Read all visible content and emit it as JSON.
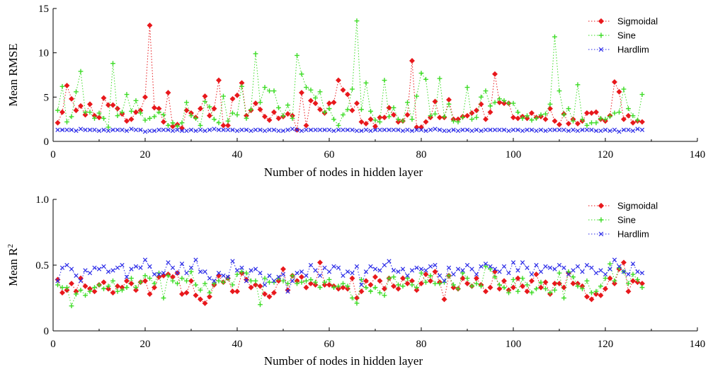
{
  "chart_data": [
    {
      "type": "line",
      "xlabel": "Number of nodes in hidden layer",
      "ylabel": "Mean RMSE",
      "xlim": [
        0,
        140
      ],
      "ylim": [
        0,
        15
      ],
      "xticks": [
        0,
        20,
        40,
        60,
        80,
        100,
        120,
        140
      ],
      "yticks": [
        0,
        5,
        10,
        15
      ],
      "xtick_labels": [
        "0",
        "20",
        "40",
        "60",
        "80",
        "100",
        "120",
        "140"
      ],
      "ytick_labels": [
        "0",
        "5",
        "10",
        "15"
      ],
      "grid": false,
      "legend_position": "top-right",
      "x": [
        1,
        2,
        3,
        4,
        5,
        6,
        7,
        8,
        9,
        10,
        11,
        12,
        13,
        14,
        15,
        16,
        17,
        18,
        19,
        20,
        21,
        22,
        23,
        24,
        25,
        26,
        27,
        28,
        29,
        30,
        31,
        32,
        33,
        34,
        35,
        36,
        37,
        38,
        39,
        40,
        41,
        42,
        43,
        44,
        45,
        46,
        47,
        48,
        49,
        50,
        51,
        52,
        53,
        54,
        55,
        56,
        57,
        58,
        59,
        60,
        61,
        62,
        63,
        64,
        65,
        66,
        67,
        68,
        69,
        70,
        71,
        72,
        73,
        74,
        75,
        76,
        77,
        78,
        79,
        80,
        81,
        82,
        83,
        84,
        85,
        86,
        87,
        88,
        89,
        90,
        91,
        92,
        93,
        94,
        95,
        96,
        97,
        98,
        99,
        100,
        101,
        102,
        103,
        104,
        105,
        106,
        107,
        108,
        109,
        110,
        111,
        112,
        113,
        114,
        115,
        116,
        117,
        118,
        119,
        120,
        121,
        122,
        123,
        124,
        125,
        126,
        127,
        128
      ],
      "series": [
        {
          "name": "Sigmoidal",
          "color": "#e8181c",
          "marker": "diamond",
          "values": [
            2.1,
            3.3,
            6.3,
            4.8,
            3.5,
            4.0,
            3.0,
            4.2,
            2.9,
            2.7,
            4.9,
            4.1,
            4.1,
            3.7,
            3.1,
            2.3,
            2.5,
            3.3,
            3.5,
            5.0,
            13.1,
            3.8,
            3.7,
            2.2,
            5.5,
            1.7,
            1.9,
            1.5,
            3.5,
            3.2,
            2.7,
            3.7,
            5.1,
            2.9,
            3.7,
            6.9,
            1.8,
            1.8,
            4.8,
            5.2,
            6.6,
            2.9,
            3.5,
            4.3,
            3.6,
            2.8,
            2.4,
            3.3,
            2.6,
            2.8,
            3.1,
            2.9,
            1.3,
            5.5,
            1.8,
            4.6,
            4.3,
            3.6,
            3.2,
            4.3,
            4.4,
            6.9,
            5.8,
            5.3,
            3.5,
            4.3,
            2.2,
            2.0,
            2.5,
            1.7,
            2.7,
            2.7,
            3.8,
            3.0,
            2.2,
            2.3,
            3.0,
            9.1,
            1.6,
            1.6,
            2.2,
            2.7,
            4.5,
            2.7,
            2.7,
            4.7,
            2.5,
            2.5,
            2.8,
            2.9,
            3.2,
            3.5,
            4.2,
            2.5,
            3.3,
            7.6,
            4.4,
            4.3,
            4.3,
            2.7,
            2.6,
            2.8,
            2.6,
            3.2,
            2.7,
            2.8,
            2.5,
            3.7,
            2.3,
            1.9,
            3.1,
            2.0,
            2.5,
            2.0,
            2.3,
            3.2,
            3.2,
            3.3,
            2.5,
            2.3,
            2.9,
            6.7,
            5.6,
            2.5,
            2.9,
            2.1,
            2.3,
            2.2
          ]
        },
        {
          "name": "Sine",
          "color": "#3ddc26",
          "marker": "plus",
          "values": [
            3.5,
            6.2,
            2.2,
            2.8,
            5.6,
            7.9,
            3.3,
            3.3,
            2.6,
            3.2,
            2.6,
            1.6,
            8.8,
            2.9,
            3.3,
            5.3,
            3.4,
            4.6,
            3.2,
            2.4,
            2.6,
            2.8,
            3.3,
            3.0,
            1.8,
            2.1,
            1.7,
            2.1,
            4.4,
            2.9,
            2.6,
            1.8,
            4.5,
            3.9,
            2.5,
            2.1,
            5.1,
            2.3,
            3.2,
            3.0,
            6.2,
            2.6,
            3.6,
            9.9,
            4.4,
            6.1,
            5.7,
            5.7,
            3.8,
            2.9,
            4.1,
            2.6,
            9.7,
            7.6,
            6.1,
            5.8,
            4.9,
            5.6,
            3.3,
            3.7,
            2.5,
            1.8,
            3.0,
            3.6,
            5.9,
            13.6,
            3.6,
            6.6,
            3.4,
            2.4,
            2.2,
            6.9,
            2.8,
            3.8,
            2.5,
            2.3,
            4.4,
            2.5,
            5.1,
            7.7,
            7.0,
            2.9,
            3.1,
            7.1,
            2.8,
            4.2,
            2.3,
            2.2,
            2.7,
            6.1,
            2.5,
            2.7,
            5.0,
            5.7,
            4.0,
            4.4,
            4.8,
            4.6,
            4.3,
            4.3,
            3.3,
            2.6,
            2.9,
            2.4,
            2.6,
            3.0,
            3.1,
            4.2,
            11.8,
            5.7,
            3.0,
            3.7,
            2.3,
            6.4,
            2.5,
            1.8,
            2.1,
            2.1,
            2.6,
            2.5,
            2.8,
            3.2,
            3.3,
            5.9,
            3.7,
            2.9,
            2.4,
            5.3
          ]
        },
        {
          "name": "Hardlim",
          "color": "#2c2ce8",
          "marker": "x",
          "values": [
            1.3,
            1.3,
            1.3,
            1.3,
            1.2,
            1.4,
            1.3,
            1.3,
            1.3,
            1.2,
            1.3,
            1.2,
            1.3,
            1.3,
            1.3,
            1.2,
            1.4,
            1.3,
            1.3,
            1.1,
            1.2,
            1.2,
            1.3,
            1.3,
            1.3,
            1.2,
            1.3,
            1.2,
            1.2,
            1.3,
            1.2,
            1.3,
            1.2,
            1.3,
            1.4,
            1.3,
            1.3,
            1.3,
            1.3,
            1.2,
            1.3,
            1.3,
            1.2,
            1.3,
            1.3,
            1.2,
            1.3,
            1.3,
            1.2,
            1.2,
            1.3,
            1.4,
            1.3,
            1.2,
            1.3,
            1.3,
            1.3,
            1.3,
            1.3,
            1.3,
            1.2,
            1.3,
            1.3,
            1.3,
            1.3,
            1.2,
            1.2,
            1.3,
            1.2,
            1.3,
            1.3,
            1.3,
            1.3,
            1.3,
            1.3,
            1.2,
            1.3,
            1.2,
            1.3,
            1.3,
            1.2,
            1.3,
            1.4,
            1.3,
            1.2,
            1.2,
            1.3,
            1.2,
            1.3,
            1.3,
            1.2,
            1.3,
            1.2,
            1.3,
            1.3,
            1.3,
            1.3,
            1.3,
            1.2,
            1.3,
            1.3,
            1.2,
            1.3,
            1.3,
            1.2,
            1.3,
            1.2,
            1.3,
            1.3,
            1.3,
            1.3,
            1.2,
            1.3,
            1.2,
            1.3,
            1.3,
            1.3,
            1.2,
            1.2,
            1.3,
            1.2,
            1.3,
            1.1,
            1.3,
            1.3,
            1.2,
            1.4,
            1.3
          ]
        }
      ]
    },
    {
      "type": "line",
      "xlabel": "Number of nodes in hidden layer",
      "ylabel": "Mean R",
      "ylabel_superscript": "2",
      "xlim": [
        0,
        140
      ],
      "ylim": [
        0,
        1.0
      ],
      "xticks": [
        0,
        20,
        40,
        60,
        80,
        100,
        120,
        140
      ],
      "yticks": [
        0,
        0.5,
        1.0
      ],
      "xtick_labels": [
        "0",
        "20",
        "40",
        "60",
        "80",
        "100",
        "120",
        "140"
      ],
      "ytick_labels": [
        "0",
        "0.5",
        "1.0"
      ],
      "grid": false,
      "legend_position": "top-right",
      "x": [
        1,
        2,
        3,
        4,
        5,
        6,
        7,
        8,
        9,
        10,
        11,
        12,
        13,
        14,
        15,
        16,
        17,
        18,
        19,
        20,
        21,
        22,
        23,
        24,
        25,
        26,
        27,
        28,
        29,
        30,
        31,
        32,
        33,
        34,
        35,
        36,
        37,
        38,
        39,
        40,
        41,
        42,
        43,
        44,
        45,
        46,
        47,
        48,
        49,
        50,
        51,
        52,
        53,
        54,
        55,
        56,
        57,
        58,
        59,
        60,
        61,
        62,
        63,
        64,
        65,
        66,
        67,
        68,
        69,
        70,
        71,
        72,
        73,
        74,
        75,
        76,
        77,
        78,
        79,
        80,
        81,
        82,
        83,
        84,
        85,
        86,
        87,
        88,
        89,
        90,
        91,
        92,
        93,
        94,
        95,
        96,
        97,
        98,
        99,
        100,
        101,
        102,
        103,
        104,
        105,
        106,
        107,
        108,
        109,
        110,
        111,
        112,
        113,
        114,
        115,
        116,
        117,
        118,
        119,
        120,
        121,
        122,
        123,
        124,
        125,
        126,
        127,
        128
      ],
      "series": [
        {
          "name": "Sigmoidal",
          "color": "#e8181c",
          "marker": "diamond",
          "values": [
            0.39,
            0.29,
            0.31,
            0.36,
            0.3,
            0.4,
            0.34,
            0.32,
            0.3,
            0.35,
            0.37,
            0.32,
            0.29,
            0.34,
            0.33,
            0.38,
            0.36,
            0.31,
            0.37,
            0.38,
            0.28,
            0.33,
            0.41,
            0.42,
            0.43,
            0.41,
            0.44,
            0.28,
            0.29,
            0.38,
            0.27,
            0.24,
            0.21,
            0.26,
            0.35,
            0.42,
            0.37,
            0.4,
            0.3,
            0.3,
            0.44,
            0.39,
            0.33,
            0.35,
            0.34,
            0.28,
            0.26,
            0.29,
            0.38,
            0.47,
            0.31,
            0.42,
            0.38,
            0.41,
            0.33,
            0.36,
            0.35,
            0.52,
            0.35,
            0.35,
            0.34,
            0.32,
            0.33,
            0.32,
            0.4,
            0.25,
            0.3,
            0.38,
            0.35,
            0.41,
            0.38,
            0.32,
            0.4,
            0.34,
            0.32,
            0.4,
            0.36,
            0.38,
            0.31,
            0.36,
            0.43,
            0.38,
            0.45,
            0.37,
            0.24,
            0.42,
            0.33,
            0.32,
            0.4,
            0.36,
            0.34,
            0.4,
            0.35,
            0.3,
            0.33,
            0.45,
            0.32,
            0.38,
            0.31,
            0.33,
            0.4,
            0.34,
            0.3,
            0.38,
            0.43,
            0.33,
            0.37,
            0.28,
            0.36,
            0.36,
            0.33,
            0.44,
            0.36,
            0.36,
            0.34,
            0.26,
            0.24,
            0.28,
            0.27,
            0.32,
            0.4,
            0.36,
            0.47,
            0.52,
            0.3,
            0.38,
            0.37,
            0.36
          ]
        },
        {
          "name": "Sine",
          "color": "#3ddc26",
          "marker": "plus",
          "values": [
            0.35,
            0.33,
            0.33,
            0.19,
            0.28,
            0.31,
            0.27,
            0.3,
            0.33,
            0.35,
            0.32,
            0.34,
            0.38,
            0.3,
            0.31,
            0.33,
            0.4,
            0.33,
            0.37,
            0.42,
            0.4,
            0.36,
            0.44,
            0.25,
            0.42,
            0.38,
            0.36,
            0.4,
            0.38,
            0.45,
            0.35,
            0.31,
            0.36,
            0.29,
            0.36,
            0.38,
            0.37,
            0.4,
            0.35,
            0.43,
            0.45,
            0.44,
            0.38,
            0.38,
            0.2,
            0.4,
            0.37,
            0.37,
            0.4,
            0.38,
            0.36,
            0.42,
            0.36,
            0.37,
            0.38,
            0.39,
            0.37,
            0.33,
            0.37,
            0.39,
            0.33,
            0.34,
            0.36,
            0.34,
            0.25,
            0.21,
            0.39,
            0.33,
            0.3,
            0.33,
            0.29,
            0.27,
            0.4,
            0.41,
            0.35,
            0.34,
            0.4,
            0.35,
            0.33,
            0.44,
            0.37,
            0.42,
            0.36,
            0.36,
            0.37,
            0.42,
            0.35,
            0.32,
            0.44,
            0.4,
            0.34,
            0.36,
            0.34,
            0.49,
            0.47,
            0.41,
            0.35,
            0.33,
            0.29,
            0.39,
            0.3,
            0.4,
            0.35,
            0.29,
            0.32,
            0.37,
            0.32,
            0.29,
            0.31,
            0.44,
            0.25,
            0.45,
            0.41,
            0.34,
            0.32,
            0.38,
            0.29,
            0.3,
            0.34,
            0.4,
            0.51,
            0.38,
            0.48,
            0.45,
            0.36,
            0.43,
            0.39,
            0.33
          ]
        },
        {
          "name": "Hardlim",
          "color": "#2c2ce8",
          "marker": "x",
          "values": [
            0.38,
            0.48,
            0.5,
            0.47,
            0.42,
            0.38,
            0.46,
            0.44,
            0.48,
            0.47,
            0.49,
            0.45,
            0.46,
            0.48,
            0.5,
            0.41,
            0.47,
            0.49,
            0.48,
            0.54,
            0.49,
            0.43,
            0.43,
            0.44,
            0.52,
            0.48,
            0.44,
            0.51,
            0.44,
            0.48,
            0.54,
            0.45,
            0.45,
            0.4,
            0.38,
            0.44,
            0.42,
            0.41,
            0.53,
            0.46,
            0.48,
            0.38,
            0.46,
            0.47,
            0.44,
            0.35,
            0.42,
            0.38,
            0.41,
            0.43,
            0.3,
            0.38,
            0.44,
            0.45,
            0.42,
            0.5,
            0.46,
            0.42,
            0.48,
            0.45,
            0.49,
            0.48,
            0.42,
            0.45,
            0.44,
            0.49,
            0.35,
            0.45,
            0.49,
            0.47,
            0.46,
            0.5,
            0.53,
            0.46,
            0.45,
            0.47,
            0.42,
            0.46,
            0.48,
            0.47,
            0.46,
            0.49,
            0.5,
            0.42,
            0.38,
            0.48,
            0.43,
            0.47,
            0.46,
            0.5,
            0.47,
            0.43,
            0.49,
            0.51,
            0.49,
            0.47,
            0.45,
            0.49,
            0.44,
            0.52,
            0.46,
            0.52,
            0.48,
            0.43,
            0.5,
            0.45,
            0.49,
            0.48,
            0.47,
            0.5,
            0.48,
            0.43,
            0.46,
            0.49,
            0.45,
            0.5,
            0.48,
            0.44,
            0.46,
            0.43,
            0.47,
            0.54,
            0.49,
            0.45,
            0.43,
            0.51,
            0.45,
            0.44
          ]
        }
      ]
    }
  ]
}
